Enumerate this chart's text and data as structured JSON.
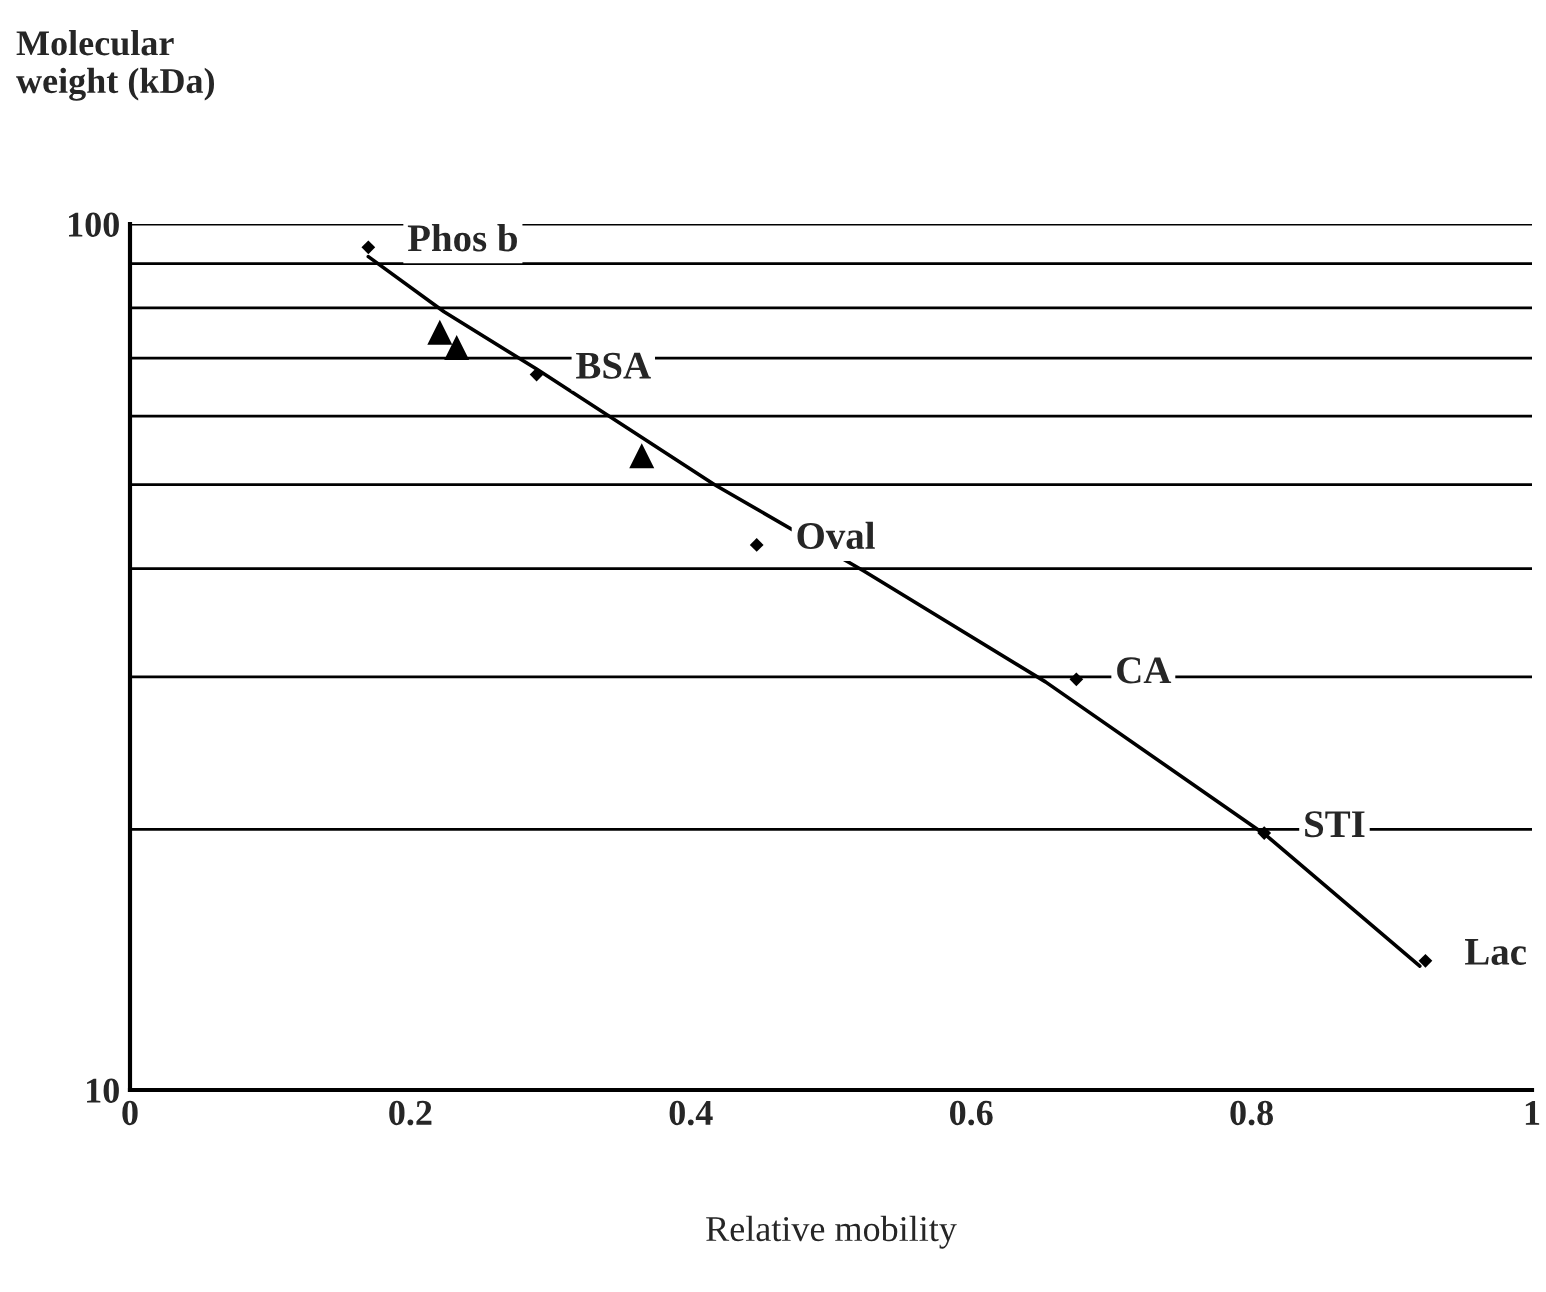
{
  "chart_data": {
    "type": "scatter",
    "ylabel": "Molecular\nweight (kDa)",
    "xlabel": "Relative mobility",
    "log": "y",
    "xlim": [
      0,
      1
    ],
    "xticks": [
      0,
      0.2,
      0.4,
      0.6,
      0.8,
      1
    ],
    "ylim": [
      10,
      100
    ],
    "yticks": [
      10,
      {
        "value": 20,
        "label": null
      },
      {
        "value": 30,
        "label": null
      },
      {
        "value": 40,
        "label": null
      },
      {
        "value": 50,
        "label": null
      },
      {
        "value": 60,
        "label": null
      },
      {
        "value": 70,
        "label": null
      },
      {
        "value": 80,
        "label": null
      },
      {
        "value": 90,
        "label": null
      },
      100
    ],
    "grid": "y",
    "legend": false,
    "series": [
      {
        "marker": "diamond",
        "color": "#000000",
        "x": [
          0.17,
          0.29,
          0.447,
          0.675,
          0.809,
          0.924
        ],
        "values": [
          94,
          67,
          42.6,
          29.8,
          19.8,
          14.1
        ]
      },
      {
        "marker": "triangle",
        "color": "#000000",
        "x": [
          0.221,
          0.233,
          0.365
        ],
        "values": [
          75,
          72,
          54
        ]
      },
      {
        "type": "line",
        "marker": "none",
        "line_style": "solid",
        "color": "#000000",
        "x": [
          0.17,
          0.224,
          0.29,
          0.417,
          0.524,
          0.653,
          0.81,
          0.92
        ],
        "values": [
          91.7,
          79.2,
          68,
          50,
          39.7,
          29.6,
          19.7,
          13.9
        ]
      }
    ],
    "annotations": [
      {
        "text": "Phos b",
        "x": 0.17,
        "y": 94
      },
      {
        "text": "BSA",
        "x": 0.29,
        "y": 67
      },
      {
        "text": "Oval",
        "x": 0.447,
        "y": 42.6
      },
      {
        "text": "CA",
        "x": 0.675,
        "y": 29.8
      },
      {
        "text": "STI",
        "x": 0.809,
        "y": 19.8
      },
      {
        "text": "Lac",
        "x": 0.924,
        "y": 14.1
      }
    ]
  }
}
